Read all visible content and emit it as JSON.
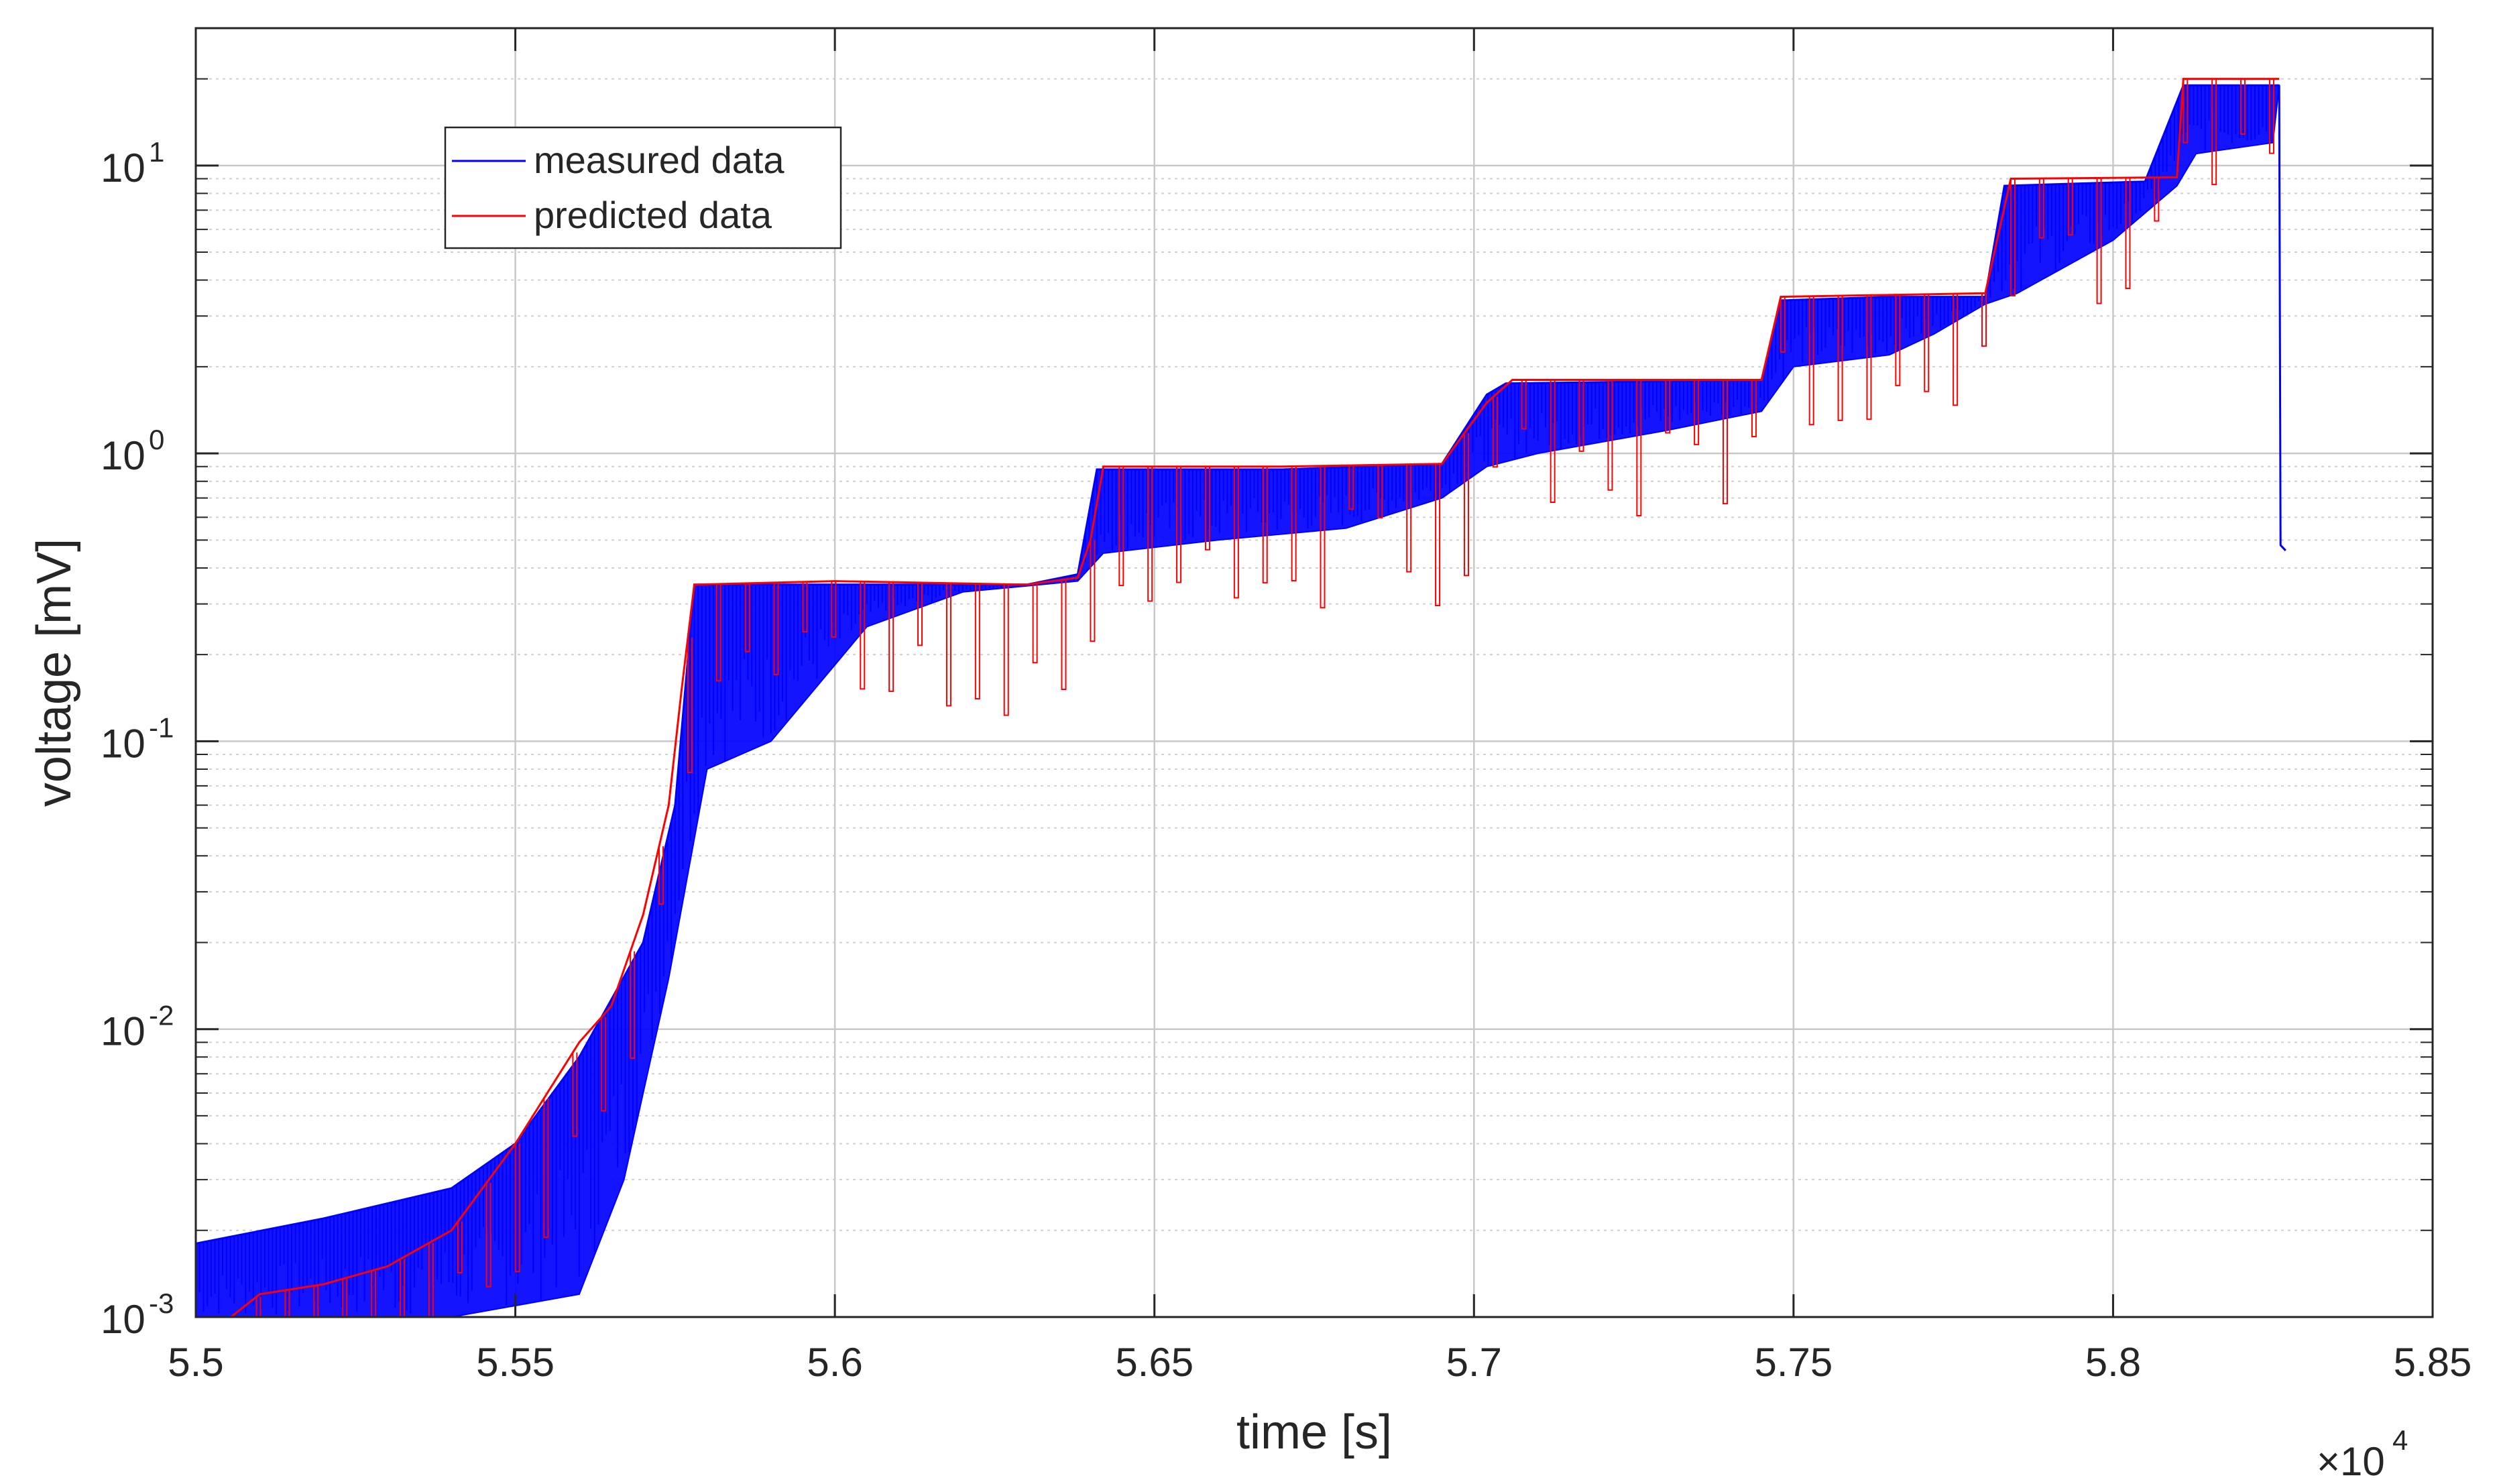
{
  "chart_data": {
    "type": "line",
    "xlabel": "time [s]",
    "ylabel": "voltage [mV]",
    "x_multiplier_label": "×10",
    "x_multiplier_exponent": "4",
    "xlim": [
      55000,
      58500
    ],
    "ylim": [
      0.001,
      30
    ],
    "yscale": "log",
    "grid": true,
    "minor_grid": true,
    "legend_position": "top-left",
    "x_ticks": [
      {
        "value": 55000,
        "label": "5.5"
      },
      {
        "value": 55500,
        "label": "5.55"
      },
      {
        "value": 56000,
        "label": "5.6"
      },
      {
        "value": 56500,
        "label": "5.65"
      },
      {
        "value": 57000,
        "label": "5.7"
      },
      {
        "value": 57500,
        "label": "5.75"
      },
      {
        "value": 58000,
        "label": "5.8"
      },
      {
        "value": 58500,
        "label": "5.85"
      }
    ],
    "y_ticks": [
      {
        "value": 0.001,
        "base": "10",
        "exp": "-3"
      },
      {
        "value": 0.01,
        "base": "10",
        "exp": "-2"
      },
      {
        "value": 0.1,
        "base": "10",
        "exp": "-1"
      },
      {
        "value": 1,
        "base": "10",
        "exp": "0"
      },
      {
        "value": 10,
        "base": "10",
        "exp": "1"
      }
    ],
    "series": [
      {
        "name": "measured data",
        "color": "#0000ff",
        "upper": [
          [
            55000,
            0.0018
          ],
          [
            55200,
            0.0022
          ],
          [
            55400,
            0.0028
          ],
          [
            55500,
            0.004
          ],
          [
            55600,
            0.008
          ],
          [
            55700,
            0.02
          ],
          [
            55750,
            0.06
          ],
          [
            55780,
            0.35
          ],
          [
            56000,
            0.35
          ],
          [
            56300,
            0.35
          ],
          [
            56380,
            0.38
          ],
          [
            56410,
            0.88
          ],
          [
            56700,
            0.88
          ],
          [
            56950,
            0.92
          ],
          [
            57020,
            1.6
          ],
          [
            57050,
            1.75
          ],
          [
            57450,
            1.8
          ],
          [
            57480,
            3.4
          ],
          [
            57650,
            3.5
          ],
          [
            57800,
            3.5
          ],
          [
            57830,
            8.5
          ],
          [
            58050,
            8.8
          ],
          [
            58110,
            19
          ],
          [
            58260,
            19
          ]
        ],
        "lower": [
          [
            55000,
            0.001
          ],
          [
            55200,
            0.001
          ],
          [
            55400,
            0.001
          ],
          [
            55600,
            0.0012
          ],
          [
            55670,
            0.003
          ],
          [
            55700,
            0.006
          ],
          [
            55740,
            0.015
          ],
          [
            55800,
            0.08
          ],
          [
            55900,
            0.1
          ],
          [
            56050,
            0.25
          ],
          [
            56200,
            0.33
          ],
          [
            56380,
            0.36
          ],
          [
            56420,
            0.45
          ],
          [
            56600,
            0.5
          ],
          [
            56800,
            0.55
          ],
          [
            56950,
            0.7
          ],
          [
            57020,
            0.9
          ],
          [
            57100,
            1.0
          ],
          [
            57300,
            1.2
          ],
          [
            57450,
            1.4
          ],
          [
            57500,
            2.0
          ],
          [
            57650,
            2.2
          ],
          [
            57720,
            2.6
          ],
          [
            57800,
            3.3
          ],
          [
            57850,
            3.6
          ],
          [
            58000,
            5.5
          ],
          [
            58100,
            8.5
          ],
          [
            58130,
            11
          ],
          [
            58250,
            12
          ]
        ],
        "drop": [
          [
            58260,
            19
          ],
          [
            58262,
            0.48
          ],
          [
            58270,
            0.46
          ]
        ]
      },
      {
        "name": "predicted data",
        "color": "#ff0000",
        "line": [
          [
            55000,
            0.0008
          ],
          [
            55100,
            0.0012
          ],
          [
            55200,
            0.0013
          ],
          [
            55300,
            0.0015
          ],
          [
            55400,
            0.002
          ],
          [
            55500,
            0.004
          ],
          [
            55600,
            0.009
          ],
          [
            55650,
            0.012
          ],
          [
            55700,
            0.025
          ],
          [
            55740,
            0.06
          ],
          [
            55760,
            0.15
          ],
          [
            55780,
            0.35
          ],
          [
            56000,
            0.36
          ],
          [
            56300,
            0.35
          ],
          [
            56380,
            0.37
          ],
          [
            56400,
            0.5
          ],
          [
            56420,
            0.9
          ],
          [
            56700,
            0.9
          ],
          [
            56950,
            0.92
          ],
          [
            57020,
            1.5
          ],
          [
            57060,
            1.8
          ],
          [
            57450,
            1.8
          ],
          [
            57480,
            3.5
          ],
          [
            57800,
            3.6
          ],
          [
            57840,
            9
          ],
          [
            58100,
            9.1
          ],
          [
            58110,
            20
          ],
          [
            58260,
            20
          ]
        ]
      }
    ]
  }
}
